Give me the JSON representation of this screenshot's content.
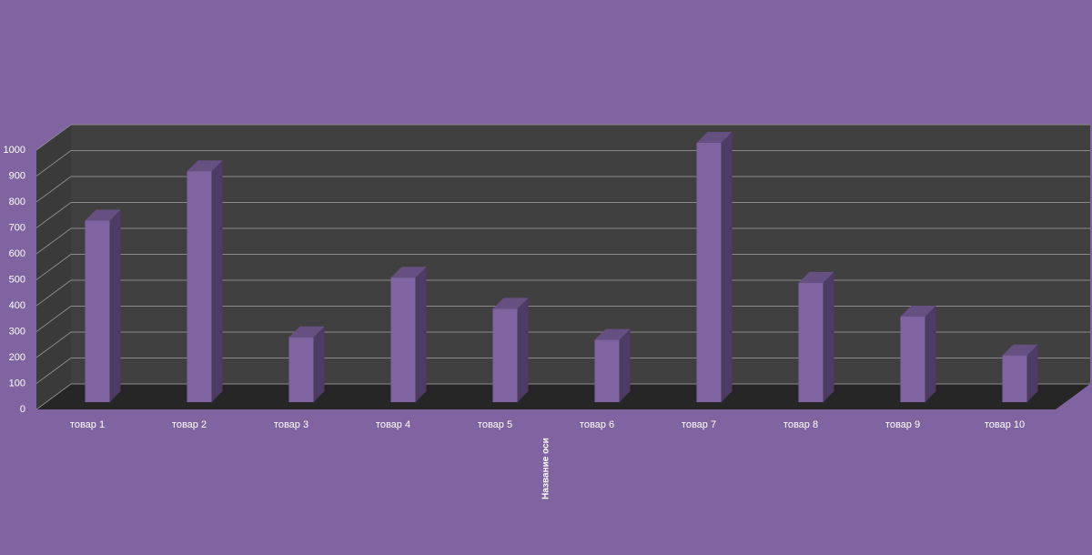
{
  "chart_data": {
    "type": "bar3d",
    "x_label": "Название оси",
    "categories": [
      "товар 1",
      "товар 2",
      "товар 3",
      "товар 4",
      "товар 5",
      "товар 6",
      "товар 7",
      "товар 8",
      "товар 9",
      "товар 10"
    ],
    "values": [
      700,
      890,
      250,
      480,
      360,
      240,
      1000,
      460,
      330,
      180
    ],
    "color": "#8064a2",
    "ylim": [
      0,
      1000
    ],
    "yticks": [
      0,
      100,
      200,
      300,
      400,
      500,
      600,
      700,
      800,
      900,
      1000
    ],
    "grid": true
  }
}
